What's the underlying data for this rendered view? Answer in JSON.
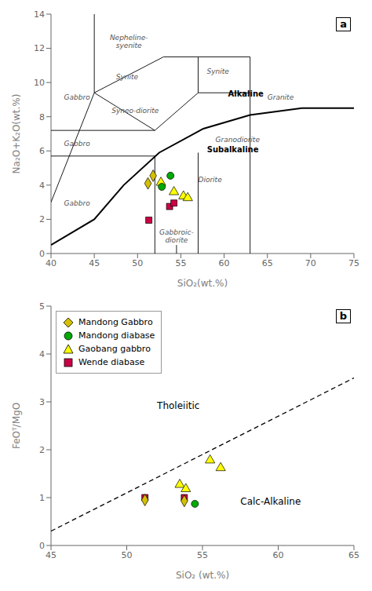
{
  "chart_data": [
    {
      "type": "scatter",
      "label": "a",
      "x_label": "SiO₂(wt.%)",
      "y_label": "Na₂O+K₂O(wt.%)",
      "xlim": [
        40,
        75
      ],
      "ylim": [
        0,
        14
      ],
      "xticks": [
        40,
        45,
        50,
        55,
        60,
        65,
        70,
        75
      ],
      "yticks": [
        0,
        2,
        4,
        6,
        8,
        10,
        12,
        14
      ],
      "series": [
        {
          "name": "Mandong Gabbro",
          "color": "#d4c000",
          "marker": "diamond",
          "x": [
            51.2,
            51.8
          ],
          "y": [
            4.1,
            4.55
          ]
        },
        {
          "name": "Mandong diabase",
          "color": "#00aa00",
          "marker": "circle",
          "x": [
            52.8,
            53.8
          ],
          "y": [
            3.9,
            4.55
          ]
        },
        {
          "name": "Gaobang gabbro",
          "color": "#ffff00",
          "marker": "triangle",
          "x": [
            52.7,
            54.2,
            55.3,
            55.8
          ],
          "y": [
            4.15,
            3.6,
            3.35,
            3.25
          ]
        },
        {
          "name": "Wende diabase",
          "color": "#cc0044",
          "marker": "square",
          "x": [
            51.3,
            53.7,
            54.2
          ],
          "y": [
            1.95,
            2.75,
            2.95
          ]
        }
      ],
      "boundary": {
        "x": [
          40,
          45,
          48.4,
          52.5,
          57.6,
          63,
          69,
          75
        ],
        "y": [
          0.5,
          2.0,
          4.0,
          5.9,
          7.3,
          8.1,
          8.5,
          8.5
        ],
        "line_style": "solid"
      },
      "lines": [
        {
          "x": [
            40,
            45
          ],
          "y": [
            3.0,
            9.4
          ]
        },
        {
          "x": [
            45,
            45
          ],
          "y": [
            9.4,
            14
          ]
        },
        {
          "x": [
            45,
            53
          ],
          "y": [
            9.4,
            11.5
          ]
        },
        {
          "x": [
            45,
            52
          ],
          "y": [
            9.4,
            7.2
          ]
        },
        {
          "x": [
            40,
            52
          ],
          "y": [
            7.2,
            7.2
          ]
        },
        {
          "x": [
            40,
            52
          ],
          "y": [
            5.7,
            5.7
          ]
        },
        {
          "x": [
            52,
            57
          ],
          "y": [
            7.2,
            9.4
          ]
        },
        {
          "x": [
            57,
            63
          ],
          "y": [
            9.4,
            9.4
          ]
        },
        {
          "x": [
            53,
            57
          ],
          "y": [
            11.5,
            11.5
          ]
        },
        {
          "x": [
            57,
            57
          ],
          "y": [
            9.4,
            11.5
          ]
        },
        {
          "x": [
            57,
            63
          ],
          "y": [
            11.5,
            11.5
          ]
        },
        {
          "x": [
            63,
            63
          ],
          "y": [
            9.4,
            11.5
          ]
        },
        {
          "x": [
            63,
            63
          ],
          "y": [
            0,
            9.4
          ]
        },
        {
          "x": [
            52,
            52
          ],
          "y": [
            0,
            5.7
          ]
        },
        {
          "x": [
            57,
            57
          ],
          "y": [
            0,
            5.9
          ]
        },
        {
          "x": [
            54.5,
            54.5
          ],
          "y": [
            0,
            0.5
          ]
        }
      ],
      "annotations": [
        {
          "text": "Gabbro",
          "x": 41.5,
          "y": 9.0
        },
        {
          "text": "Gabbro",
          "x": 41.5,
          "y": 6.3
        },
        {
          "text": "Gabbro",
          "x": 41.5,
          "y": 2.8
        },
        {
          "text": "Syneo-diorite",
          "x": 47,
          "y": 8.2
        },
        {
          "text": "Synite",
          "x": 47.5,
          "y": 10.2
        },
        {
          "text": "Nepheline-\nsyenite",
          "x": 49,
          "y": 12.5
        },
        {
          "text": "Synite",
          "x": 58,
          "y": 10.5
        },
        {
          "text": "Granite",
          "x": 65,
          "y": 9.0
        },
        {
          "text": "Granodiorite",
          "x": 59,
          "y": 6.5
        },
        {
          "text": "Diorite",
          "x": 57,
          "y": 4.2
        },
        {
          "text": "Gabbroic-\ndiorite",
          "x": 54.5,
          "y": 0.0
        }
      ],
      "region_labels": [
        {
          "text": "Alkaline",
          "x": 62.5,
          "y": 9.2
        },
        {
          "text": "Subalkaline",
          "x": 61,
          "y": 5.9
        }
      ]
    },
    {
      "type": "scatter",
      "label": "b",
      "x_label": "SiO₂ (wt.%)",
      "y_label": "FeOᵀ/MgO",
      "xlim": [
        45,
        65
      ],
      "ylim": [
        0,
        5
      ],
      "xticks": [
        45,
        50,
        55,
        60,
        65
      ],
      "yticks": [
        0,
        1,
        2,
        3,
        4,
        5
      ],
      "legend": "upper left",
      "series": [
        {
          "name": "Mandong Gabbro",
          "color": "#d4c000",
          "marker": "diamond",
          "x": [
            51.2,
            53.8
          ],
          "y": [
            0.95,
            0.93
          ]
        },
        {
          "name": "Mandong diabase",
          "color": "#00aa00",
          "marker": "circle",
          "x": [
            54.5
          ],
          "y": [
            0.87
          ]
        },
        {
          "name": "Gaobang gabbro",
          "color": "#ffff00",
          "marker": "triangle",
          "x": [
            53.5,
            53.9,
            55.5,
            56.2
          ],
          "y": [
            1.27,
            1.18,
            1.78,
            1.62
          ]
        },
        {
          "name": "Wende diabase",
          "color": "#cc0044",
          "marker": "square",
          "x": [
            51.2,
            53.8
          ],
          "y": [
            1.0,
            1.0
          ]
        }
      ],
      "boundary": {
        "x": [
          45,
          65
        ],
        "y": [
          0.3,
          3.5
        ],
        "line_style": "dashed"
      },
      "lines": [],
      "annotations": [],
      "region_labels": [
        {
          "text": "Tholeiitic",
          "x": 52,
          "y": 2.85
        },
        {
          "text": "Calc-Alkaline",
          "x": 57.5,
          "y": 0.85
        }
      ]
    }
  ]
}
